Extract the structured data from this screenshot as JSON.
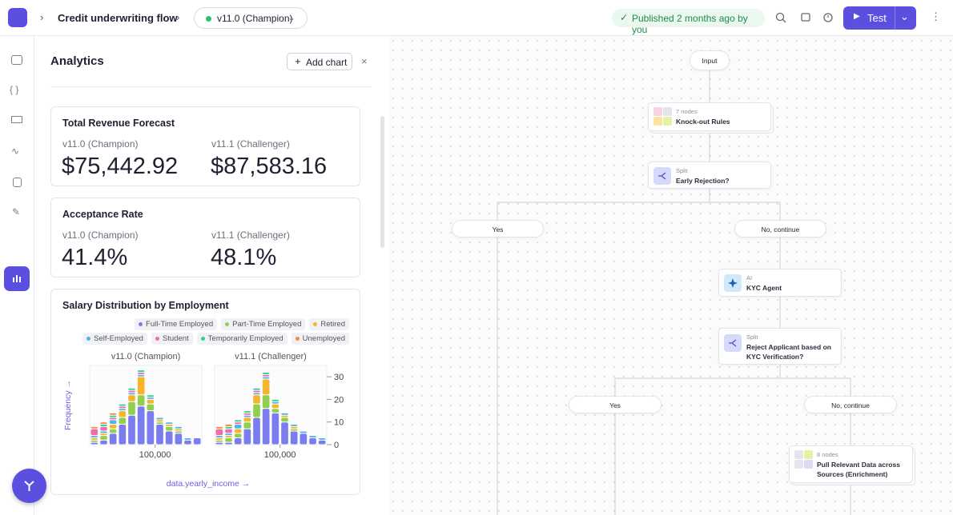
{
  "header": {
    "breadcrumb": "Credit underwriting flow",
    "version": "v11.0 (Champion)",
    "status": "Published 2 months ago by you",
    "test_button": "Test"
  },
  "analytics": {
    "title": "Analytics",
    "add_chart": "Add chart",
    "cards": [
      {
        "title": "Total Revenue Forecast",
        "metrics": [
          {
            "label": "v11.0 (Champion)",
            "value": "$75,442.92"
          },
          {
            "label": "v11.1 (Challenger)",
            "value": "$87,583.16"
          }
        ]
      },
      {
        "title": "Acceptance Rate",
        "metrics": [
          {
            "label": "v11.0 (Champion)",
            "value": "41.4%"
          },
          {
            "label": "v11.1 (Challenger)",
            "value": "48.1%"
          }
        ]
      },
      {
        "title": "Salary Distribution by Employment"
      }
    ]
  },
  "chart_data": [
    {
      "type": "histogram",
      "title": "v11.0 (Champion)",
      "x_label": "data.yearly_income →",
      "y_label": "Frequency →",
      "bins": [
        30000,
        40000,
        50000,
        60000,
        70000,
        80000,
        90000,
        100000,
        110000,
        120000,
        130000,
        140000,
        150000
      ],
      "xlim": [
        30000,
        150000
      ],
      "xticks": [
        {
          "value": 100000,
          "label": "100,000"
        }
      ],
      "ylim": [
        0,
        35
      ],
      "series": [
        {
          "name": "Full-Time Employed",
          "color": "#7b7cf0",
          "values": [
            1,
            2,
            5,
            9,
            13,
            17,
            15,
            9,
            6,
            5,
            2,
            3
          ]
        },
        {
          "name": "Part-Time Employed",
          "color": "#8fd14f",
          "values": [
            1,
            2,
            2,
            3,
            6,
            5,
            3,
            1,
            2,
            1,
            0,
            0
          ]
        },
        {
          "name": "Retired",
          "color": "#f6b52b",
          "values": [
            1,
            1,
            2,
            3,
            3,
            8,
            2,
            1,
            1,
            1,
            0,
            0
          ]
        },
        {
          "name": "Self-Employed",
          "color": "#4fb3f0",
          "values": [
            1,
            1,
            2,
            1,
            1,
            1,
            1,
            1,
            1,
            1,
            1,
            0
          ]
        },
        {
          "name": "Student",
          "color": "#f06fa8",
          "values": [
            3,
            2,
            1,
            1,
            1,
            1,
            0,
            0,
            0,
            0,
            0,
            0
          ]
        },
        {
          "name": "Temporarily Employed",
          "color": "#2fcf8f",
          "values": [
            0,
            1,
            1,
            1,
            1,
            1,
            1,
            0,
            0,
            0,
            0,
            0
          ]
        },
        {
          "name": "Unemployed",
          "color": "#f58a3b",
          "values": [
            1,
            1,
            1,
            0,
            0,
            0,
            0,
            0,
            0,
            0,
            0,
            0
          ]
        }
      ]
    },
    {
      "type": "histogram",
      "title": "v11.1 (Challenger)",
      "bins": [
        30000,
        40000,
        50000,
        60000,
        70000,
        80000,
        90000,
        100000,
        110000,
        120000,
        130000,
        140000,
        150000
      ],
      "xlim": [
        30000,
        150000
      ],
      "xticks": [
        {
          "value": 100000,
          "label": "100,000"
        }
      ],
      "ylim": [
        0,
        35
      ],
      "yticks": [
        0,
        10,
        20,
        30
      ],
      "series": [
        {
          "color": "#7b7cf0",
          "values": [
            1,
            1,
            3,
            7,
            12,
            16,
            14,
            10,
            6,
            5,
            3,
            2
          ]
        },
        {
          "color": "#8fd14f",
          "values": [
            1,
            2,
            2,
            3,
            6,
            6,
            2,
            2,
            1,
            0,
            0,
            0
          ]
        },
        {
          "color": "#f6b52b",
          "values": [
            1,
            1,
            2,
            2,
            4,
            7,
            2,
            1,
            1,
            0,
            0,
            0
          ]
        },
        {
          "color": "#4fb3f0",
          "values": [
            1,
            1,
            2,
            1,
            1,
            1,
            1,
            1,
            1,
            1,
            1,
            1
          ]
        },
        {
          "color": "#f06fa8",
          "values": [
            3,
            2,
            1,
            1,
            1,
            1,
            0,
            0,
            0,
            0,
            0,
            0
          ]
        },
        {
          "color": "#2fcf8f",
          "values": [
            0,
            1,
            1,
            1,
            1,
            1,
            1,
            0,
            0,
            0,
            0,
            0
          ]
        },
        {
          "color": "#f58a3b",
          "values": [
            1,
            1,
            0,
            0,
            0,
            0,
            0,
            0,
            0,
            0,
            0,
            0
          ]
        }
      ]
    }
  ],
  "flow": {
    "nodes": [
      {
        "label": "Input"
      },
      {
        "kind": "7 nodes",
        "label": "Knock-out Rules"
      },
      {
        "kind": "Split",
        "label": "Early Rejection?"
      },
      {
        "label": "Yes"
      },
      {
        "label": "No, continue"
      },
      {
        "kind": "AI",
        "label": "KYC Agent"
      },
      {
        "kind": "Split",
        "label": "Reject Applicant based on KYC Verification?"
      },
      {
        "label": "Yes"
      },
      {
        "label": "No, continue"
      },
      {
        "kind": "8 nodes",
        "label": "Pull Relevant Data across Sources (Enrichment)"
      }
    ]
  }
}
